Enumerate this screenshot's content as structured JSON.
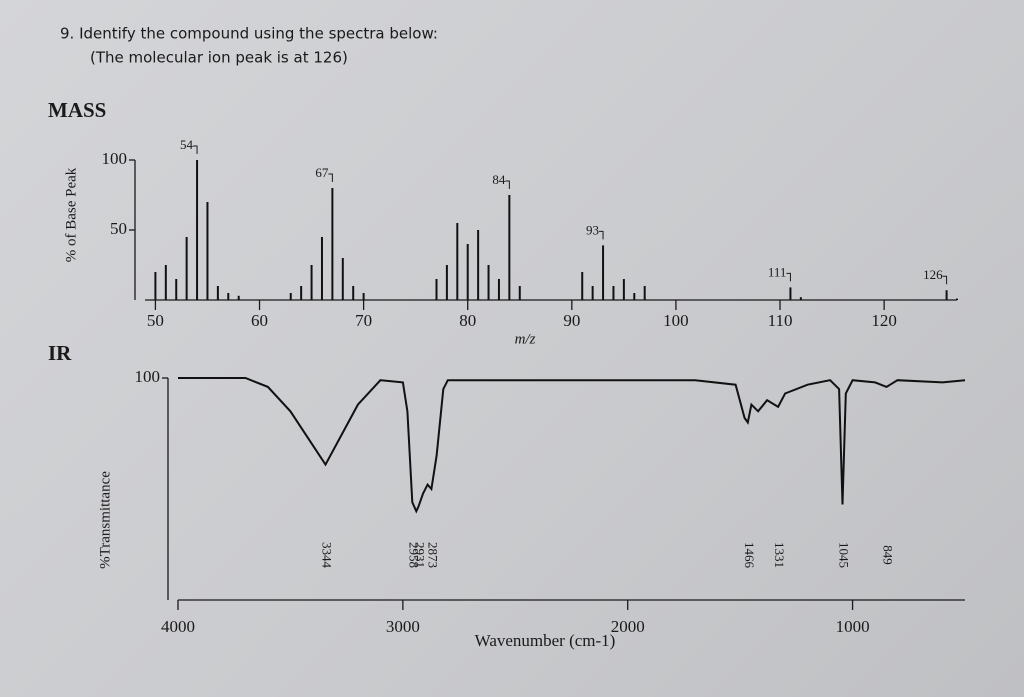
{
  "question": {
    "line1": "9.  Identify the compound using the spectra below:",
    "line2": "(The molecular ion peak is at 126)"
  },
  "chart_data": [
    {
      "type": "bar",
      "title": "MASS",
      "ylabel": "% of Base Peak",
      "xlabel": "m/z",
      "color": "#111111",
      "x": [
        50,
        51,
        52,
        53,
        54,
        55,
        56,
        57,
        58,
        63,
        64,
        65,
        66,
        67,
        68,
        69,
        70,
        77,
        78,
        79,
        80,
        81,
        82,
        83,
        84,
        85,
        91,
        92,
        93,
        94,
        95,
        96,
        97,
        111,
        112,
        126,
        127
      ],
      "values": [
        20,
        25,
        15,
        45,
        100,
        70,
        10,
        5,
        3,
        5,
        10,
        25,
        45,
        80,
        30,
        10,
        5,
        15,
        25,
        55,
        40,
        50,
        25,
        15,
        75,
        10,
        20,
        10,
        39,
        10,
        15,
        5,
        10,
        9,
        2,
        7,
        1
      ],
      "peak_labels": [
        54,
        67,
        84,
        93,
        111,
        126
      ],
      "xlim": [
        49,
        127
      ],
      "xticks": [
        50,
        60,
        70,
        80,
        90,
        100,
        110,
        120
      ],
      "ylim": [
        0,
        100
      ],
      "yticks": [
        50,
        100
      ]
    },
    {
      "type": "line",
      "title": "IR",
      "ylabel": "%Transmittance",
      "xlabel": "Wavenumber (cm-1)",
      "color": "#111111",
      "x": [
        4000,
        3700,
        3600,
        3500,
        3344,
        3200,
        3100,
        3000,
        2980,
        2958,
        2940,
        2931,
        2910,
        2890,
        2873,
        2850,
        2820,
        2800,
        1700,
        1520,
        1480,
        1466,
        1450,
        1420,
        1380,
        1331,
        1300,
        1200,
        1100,
        1060,
        1045,
        1030,
        1000,
        900,
        849,
        800,
        600,
        500
      ],
      "values": [
        100,
        100,
        96,
        85,
        61,
        88,
        99,
        98,
        85,
        44,
        40,
        42,
        48,
        52,
        50,
        65,
        95,
        99,
        99,
        97,
        82,
        80,
        88,
        85,
        90,
        87,
        93,
        97,
        99,
        95,
        43,
        93,
        99,
        98,
        96,
        99,
        98,
        99
      ],
      "peak_labels": [
        3344,
        2958,
        2931,
        2873,
        1466,
        1331,
        1045,
        849
      ],
      "xlim": [
        4000,
        500
      ],
      "xticks": [
        4000,
        3000,
        2000,
        1000
      ],
      "ylim": [
        0,
        100
      ],
      "yticks": [
        100
      ]
    }
  ]
}
